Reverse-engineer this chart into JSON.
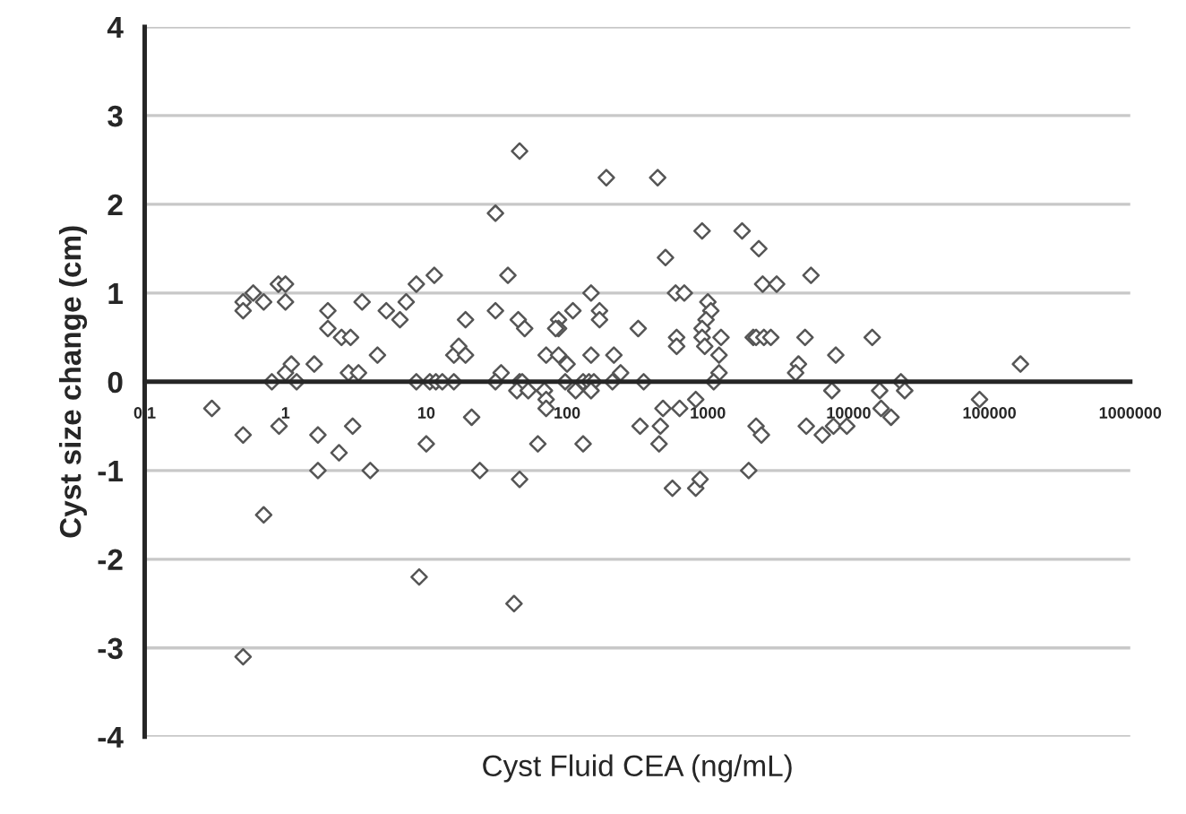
{
  "chart_data": {
    "type": "scatter",
    "xlabel": "Cyst Fluid CEA (ng/mL)",
    "ylabel": "Cyst size change (cm)",
    "log": "x",
    "xlim": [
      0.1,
      1000000
    ],
    "xticks": [
      0.1,
      1,
      10,
      100,
      1000,
      10000,
      100000,
      1000000
    ],
    "ylim": [
      -4,
      4
    ],
    "yticks": [
      -4,
      -3,
      -2,
      -1,
      0,
      1,
      2,
      3,
      4
    ],
    "grid": "y",
    "marker": "diamond",
    "series": [
      {
        "color": "#555555",
        "x": [
          0.3,
          0.5,
          0.5,
          0.59,
          0.7,
          0.8,
          0.89,
          1.0,
          1.0,
          1.0,
          1.1,
          1.2,
          1.6,
          2.0,
          2.0,
          2.5,
          2.9,
          2.8,
          3.3,
          3.5,
          4.5,
          5.2,
          6.5,
          7.2,
          8.5,
          8.5,
          10.6,
          11.7,
          13,
          15.7,
          11.4,
          15.7,
          17,
          19,
          0.5,
          0.7,
          0.5,
          0.9,
          1.7,
          1.7,
          2.4,
          3.0,
          4.0,
          8.9,
          10,
          46,
          190,
          440,
          31,
          910,
          1750,
          2300,
          500,
          38,
          2450,
          3080,
          148,
          590,
          680,
          1000,
          1050,
          31,
          45,
          50,
          110,
          87,
          87,
          83,
          170,
          170,
          320,
          970,
          910,
          600,
          600,
          910,
          950,
          1240,
          2100,
          2200,
          2500,
          2800,
          19,
          71,
          87,
          100,
          148,
          215,
          240,
          1200,
          1200,
          34,
          31,
          46,
          48,
          97,
          130,
          143,
          155,
          210,
          350,
          1100,
          44,
          53,
          69,
          115,
          148,
          71,
          21,
          480,
          630,
          820,
          71,
          330,
          460,
          450,
          62,
          130,
          24,
          46,
          560,
          820,
          880,
          1950,
          2200,
          2400,
          42,
          5400,
          4900,
          14700,
          8100,
          4400,
          4200,
          166000,
          23500,
          7600,
          16600,
          25000,
          17000,
          20000,
          85000,
          5000,
          7800,
          9700,
          6500
        ],
        "values": [
          -0.3,
          0.9,
          0.8,
          1.0,
          0.9,
          0,
          1.1,
          1.1,
          0.9,
          0.1,
          0.2,
          0,
          0.2,
          0.8,
          0.6,
          0.5,
          0.5,
          0.1,
          0.1,
          0.9,
          0.3,
          0.8,
          0.7,
          0.9,
          1.1,
          0,
          0,
          0,
          0,
          0,
          1.2,
          0.3,
          0.4,
          0.7,
          -0.6,
          -1.5,
          -3.1,
          -0.5,
          -0.6,
          -1.0,
          -0.8,
          -0.5,
          -1.0,
          -2.2,
          -0.7,
          2.6,
          2.3,
          2.3,
          1.9,
          1.7,
          1.7,
          1.5,
          1.4,
          1.2,
          1.1,
          1.1,
          1.0,
          1.0,
          1.0,
          0.9,
          0.8,
          0.8,
          0.7,
          0.6,
          0.8,
          0.7,
          0.6,
          0.6,
          0.8,
          0.7,
          0.6,
          0.7,
          0.6,
          0.5,
          0.4,
          0.5,
          0.4,
          0.5,
          0.5,
          0.5,
          0.5,
          0.5,
          0.3,
          0.3,
          0.3,
          0.2,
          0.3,
          0.3,
          0.1,
          0.3,
          0.1,
          0.1,
          0,
          0,
          0,
          0,
          0,
          0,
          0,
          0,
          0,
          0,
          -0.1,
          -0.1,
          -0.1,
          -0.1,
          -0.1,
          -0.2,
          -0.4,
          -0.3,
          -0.3,
          -0.2,
          -0.3,
          -0.5,
          -0.5,
          -0.7,
          -0.7,
          -0.7,
          -1.0,
          -1.1,
          -1.2,
          -1.2,
          -1.1,
          -1.0,
          -0.5,
          -0.6,
          -2.5,
          1.2,
          0.5,
          0.5,
          0.3,
          0.2,
          0.1,
          0.2,
          0,
          -0.1,
          -0.1,
          -0.1,
          -0.3,
          -0.4,
          -0.2,
          -0.5,
          -0.5,
          -0.5,
          -0.6
        ]
      }
    ]
  }
}
